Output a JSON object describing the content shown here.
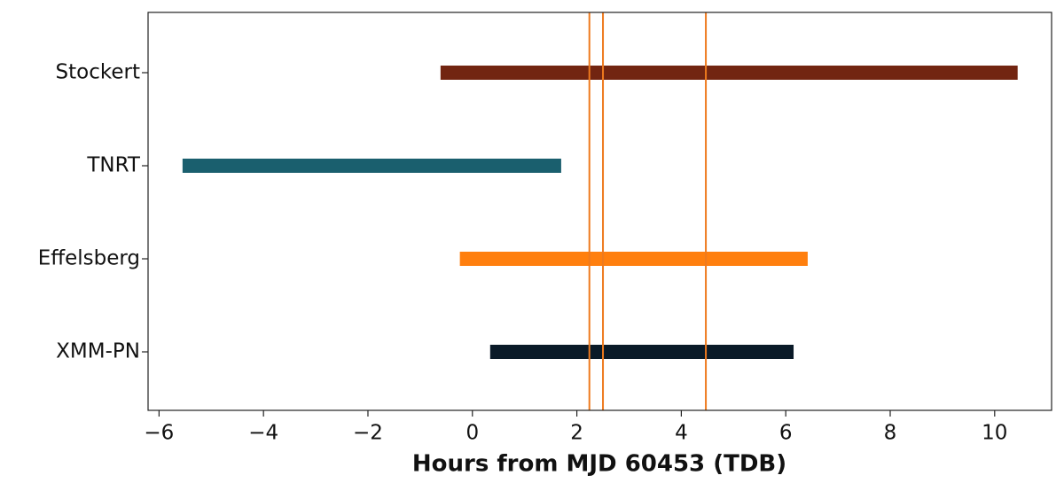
{
  "chart_data": {
    "type": "range_bar",
    "x_label": "Hours from MJD 60453 (TDB)",
    "categories": [
      "Stockert",
      "TNRT",
      "Effelsberg",
      "XMM-PN"
    ],
    "starts": [
      -0.61,
      -5.55,
      -0.24,
      0.34
    ],
    "ends": [
      10.44,
      1.7,
      6.42,
      6.15
    ],
    "colors": [
      "#722511",
      "#1a5f6e",
      "#ff7f0e",
      "#0a1a28"
    ],
    "vlines": [
      2.24,
      2.5,
      4.47
    ],
    "vline_color": "#ee7a1e",
    "xlim": [
      -6.21,
      11.09
    ],
    "xticks": [
      {
        "value": -6,
        "label": "−6"
      },
      {
        "value": -4,
        "label": "−4"
      },
      {
        "value": -2,
        "label": "−2"
      },
      0,
      2,
      4,
      6,
      8,
      10
    ]
  }
}
